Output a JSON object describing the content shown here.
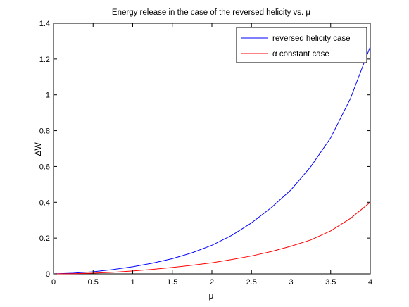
{
  "chart_data": {
    "type": "line",
    "title": "Energy release in the case of the reversed helicity vs. μ",
    "xlabel": "μ",
    "ylabel": "ΔW",
    "xlim": [
      0,
      4
    ],
    "ylim": [
      0,
      1.4
    ],
    "x_ticks": [
      0,
      0.5,
      1,
      1.5,
      2,
      2.5,
      3,
      3.5,
      4
    ],
    "x_tick_labels": [
      "0",
      "0.5",
      "1",
      "1.5",
      "2",
      "2.5",
      "3",
      "3.5",
      "4"
    ],
    "y_ticks": [
      0,
      0.2,
      0.4,
      0.6,
      0.8,
      1,
      1.2,
      1.4
    ],
    "y_tick_labels": [
      "0",
      "0.2",
      "0.4",
      "0.6",
      "0.8",
      "1",
      "1.2",
      "1.4"
    ],
    "grid": false,
    "legend_position": "top-right",
    "x": [
      0,
      0.25,
      0.5,
      0.75,
      1,
      1.25,
      1.5,
      1.75,
      2,
      2.25,
      2.5,
      2.75,
      3,
      3.25,
      3.5,
      3.75,
      4
    ],
    "series": [
      {
        "name": "reversed helicity case",
        "color": "#0000ff",
        "values": [
          0,
          0.004,
          0.012,
          0.024,
          0.04,
          0.06,
          0.085,
          0.118,
          0.16,
          0.215,
          0.285,
          0.37,
          0.47,
          0.6,
          0.76,
          0.98,
          1.27
        ]
      },
      {
        "name": "α constant case",
        "color": "#ff0000",
        "values": [
          0,
          0.001,
          0.004,
          0.009,
          0.016,
          0.025,
          0.036,
          0.048,
          0.062,
          0.08,
          0.1,
          0.125,
          0.155,
          0.19,
          0.24,
          0.31,
          0.4
        ]
      }
    ]
  }
}
